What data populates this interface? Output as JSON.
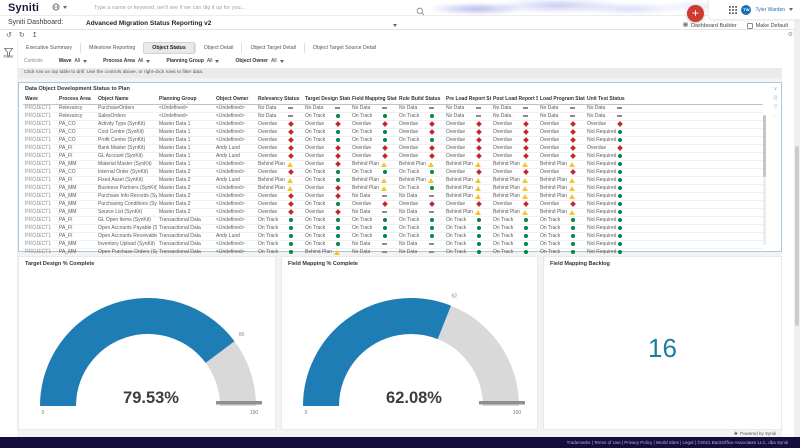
{
  "colors": {
    "gauge_fill": "#1d7db4",
    "gauge_rest": "#d9d9d9",
    "gauge_marker": "#8f8f8f",
    "kpi_teal": "#1a7fa3",
    "footer_bg": "#150d3d",
    "add_button_red": "#cf3a2e",
    "status": {
      "On Track": "#00854a",
      "Not Required": "#00854a",
      "Overdue": "#c4262e",
      "Behind Plan": "#f5c431",
      "No Data": "#8c8c8c"
    }
  },
  "topbar": {
    "logo": "Syniti",
    "search_placeholder": "Type a name or keyword, we'll see if we can dig it up for you...",
    "user_name": "Tyler Warden",
    "user_initials": "TW"
  },
  "dashboard_bar": {
    "label": "Syniti Dashboard:",
    "selected": "Advanced Migration Status Reporting v2",
    "builder_label": "Dashboard Builder",
    "make_default_label": "Make Default"
  },
  "action_bar": {
    "icons": [
      "undo",
      "redo",
      "share"
    ],
    "right_icons": [
      "gear"
    ]
  },
  "tabs": {
    "items": [
      "Executive Summary",
      "Milestone Reporting",
      "Object Status",
      "Object Detail",
      "Object Target Detail",
      "Object Target Source Detail"
    ],
    "active": "Object Status"
  },
  "filter_label": "Filter",
  "controls": {
    "label": "Controls",
    "items": [
      {
        "name": "Wave",
        "value": "All"
      },
      {
        "name": "Process Area",
        "value": "All"
      },
      {
        "name": "Planning Group",
        "value": "All"
      },
      {
        "name": "Object Owner",
        "value": "All"
      }
    ]
  },
  "hint_text": "Click row on top table to drill. Use the controls above, or right-click rows to filter data.",
  "status_table": {
    "title": "Data Object Development Status to Plan",
    "toolbar_icons": [
      "chevron-down",
      "fullscreen",
      "filter",
      "more"
    ],
    "columns": [
      "Wave",
      "Process Area",
      "Object Name",
      "Planning Group",
      "Object Owner",
      "Relevancy Status",
      "Target Design Status",
      "Field Mapping Status",
      "Rule Build Status",
      "Pre Load Report Status",
      "Post Load Report Status",
      "Load Program Status",
      "Unit Test Status"
    ],
    "rows": [
      {
        "cells": [
          "PROJECT1",
          "Relevancy",
          "PurchaseOrders",
          "<Undefined>",
          "<Undefined>"
        ],
        "statuses": [
          "No Data",
          "No Data",
          "No Data",
          "No Data",
          "No Data",
          "No Data",
          "No Data",
          "No Data"
        ]
      },
      {
        "cells": [
          "PROJECT1",
          "Relevancy",
          "SalesOrders",
          "<Undefined>",
          "<Undefined>"
        ],
        "statuses": [
          "No Data",
          "On Track",
          "On Track",
          "On Track",
          "No Data",
          "No Data",
          "No Data",
          "No Data"
        ]
      },
      {
        "cells": [
          "PROJECT1",
          "PA_CO",
          "Activity Type (SynKit)",
          "Master Data 1",
          "<Undefined>"
        ],
        "statuses": [
          "Overdue",
          "Overdue",
          "Overdue",
          "Overdue",
          "Overdue",
          "Overdue",
          "Overdue",
          "Overdue"
        ]
      },
      {
        "cells": [
          "PROJECT1",
          "PA_CO",
          "Cost Centre (SynKit)",
          "Master Data 1",
          "<Undefined>"
        ],
        "statuses": [
          "Overdue",
          "On Track",
          "On Track",
          "Overdue",
          "Overdue",
          "Overdue",
          "Overdue",
          "Not Required"
        ]
      },
      {
        "cells": [
          "PROJECT1",
          "PA_CO",
          "Profit Centre (SynKit)",
          "Master Data 1",
          "<Undefined>"
        ],
        "statuses": [
          "Overdue",
          "On Track",
          "On Track",
          "On Track",
          "Overdue",
          "Overdue",
          "Overdue",
          "Not Required"
        ]
      },
      {
        "cells": [
          "PROJECT1",
          "PA_FI",
          "Bank Master (SynKit)",
          "Master Data 1",
          "Andy Lund"
        ],
        "statuses": [
          "Overdue",
          "Overdue",
          "Overdue",
          "Overdue",
          "Overdue",
          "Overdue",
          "Overdue",
          "Overdue"
        ]
      },
      {
        "cells": [
          "PROJECT1",
          "PA_FI",
          "GL Account (SynKit)",
          "Master Data 1",
          "Andy Lund"
        ],
        "statuses": [
          "Overdue",
          "Overdue",
          "Overdue",
          "Overdue",
          "Overdue",
          "Overdue",
          "Overdue",
          "Not Required"
        ]
      },
      {
        "cells": [
          "PROJECT1",
          "PA_MM",
          "Material Master (SynKit)",
          "Master Data 1",
          "<Undefined>"
        ],
        "statuses": [
          "Behind Plan",
          "Overdue",
          "Behind Plan",
          "Behind Plan",
          "Behind Plan",
          "Behind Plan",
          "Behind Plan",
          "Not Required"
        ]
      },
      {
        "cells": [
          "PROJECT1",
          "PA_CO",
          "Internal Order (SynKit)",
          "Master Data 2",
          "<Undefined>"
        ],
        "statuses": [
          "Overdue",
          "On Track",
          "On Track",
          "On Track",
          "Overdue",
          "Overdue",
          "Overdue",
          "Not Required"
        ]
      },
      {
        "cells": [
          "PROJECT1",
          "PA_FI",
          "Fixed Asset (SynKit)",
          "Master Data 2",
          "Andy Lund"
        ],
        "statuses": [
          "Behind Plan",
          "On Track",
          "Behind Plan",
          "Behind Plan",
          "Behind Plan",
          "Behind Plan",
          "Behind Plan",
          "Not Required"
        ]
      },
      {
        "cells": [
          "PROJECT1",
          "PA_MM",
          "Business Partners (SynKit)",
          "Master Data 2",
          "<Undefined>"
        ],
        "statuses": [
          "Behind Plan",
          "Overdue",
          "Behind Plan",
          "On Track",
          "Behind Plan",
          "Behind Plan",
          "Behind Plan",
          "Not Required"
        ]
      },
      {
        "cells": [
          "PROJECT1",
          "PA_MM",
          "Purchase Info Records (SynKit)",
          "Master Data 2",
          "<Undefined>"
        ],
        "statuses": [
          "Overdue",
          "Overdue",
          "No Data",
          "No Data",
          "Behind Plan",
          "Behind Plan",
          "Behind Plan",
          "Not Required"
        ]
      },
      {
        "cells": [
          "PROJECT1",
          "PA_MM",
          "Purchasing Conditions (SynKit)",
          "Master Data 2",
          "<Undefined>"
        ],
        "statuses": [
          "Overdue",
          "On Track",
          "Overdue",
          "Overdue",
          "Overdue",
          "Overdue",
          "Overdue",
          "Not Required"
        ]
      },
      {
        "cells": [
          "PROJECT1",
          "PA_MM",
          "Source List (SynKit)",
          "Master Data 2",
          "<Undefined>"
        ],
        "statuses": [
          "Overdue",
          "Overdue",
          "No Data",
          "No Data",
          "Behind Plan",
          "Behind Plan",
          "Behind Plan",
          "Not Required"
        ]
      },
      {
        "cells": [
          "PROJECT1",
          "PA_FI",
          "GL Open Items (SynKit)",
          "Transactional Data",
          "<Undefined>"
        ],
        "statuses": [
          "On Track",
          "On Track",
          "On Track",
          "On Track",
          "On Track",
          "On Track",
          "On Track",
          "Not Required"
        ]
      },
      {
        "cells": [
          "PROJECT1",
          "PA_FI",
          "Open Accounts Payable (SynKit)",
          "Transactional Data",
          "<Undefined>"
        ],
        "statuses": [
          "On Track",
          "On Track",
          "On Track",
          "On Track",
          "On Track",
          "On Track",
          "On Track",
          "Not Required"
        ]
      },
      {
        "cells": [
          "PROJECT1",
          "PA_FI",
          "Open Accounts Receivable (SynKit)",
          "Transactional Data",
          "Andy Lund"
        ],
        "statuses": [
          "On Track",
          "On Track",
          "On Track",
          "On Track",
          "On Track",
          "On Track",
          "On Track",
          "Not Required"
        ]
      },
      {
        "cells": [
          "PROJECT1",
          "PA_MM",
          "Inventory Upload (SynKit)",
          "Transactional Data",
          "<Undefined>"
        ],
        "statuses": [
          "On Track",
          "On Track",
          "No Data",
          "No Data",
          "On Track",
          "On Track",
          "On Track",
          "Not Required"
        ]
      },
      {
        "cells": [
          "PROJECT1",
          "PA_MM",
          "Open Purchase Orders (SynKit)",
          "Transactional Data",
          "<Undefined>"
        ],
        "statuses": [
          "On Track",
          "Behind Plan",
          "No Data",
          "No Data",
          "On Track",
          "On Track",
          "On Track",
          "Not Required"
        ]
      }
    ]
  },
  "chart_data": [
    {
      "type": "gauge",
      "title": "Target Design % Complete",
      "value": 79.53,
      "value_label": "79.53%",
      "min": 0,
      "max": 100,
      "min_label": "0",
      "max_label": "100",
      "tick_label": "80"
    },
    {
      "type": "gauge",
      "title": "Field Mapping % Complete",
      "value": 62.08,
      "value_label": "62.08%",
      "min": 0,
      "max": 100,
      "min_label": "0",
      "max_label": "100",
      "tick_label": "62"
    },
    {
      "type": "kpi",
      "title": "Field Mapping Backlog",
      "value": "16"
    }
  ],
  "footer": {
    "powered_by": "Powered by Syniti",
    "links": "Trademarks | Terms of Use | Privacy Policy | World Sites | Legal | ©2021 BackOffice Associates LLC, dba Syniti"
  }
}
